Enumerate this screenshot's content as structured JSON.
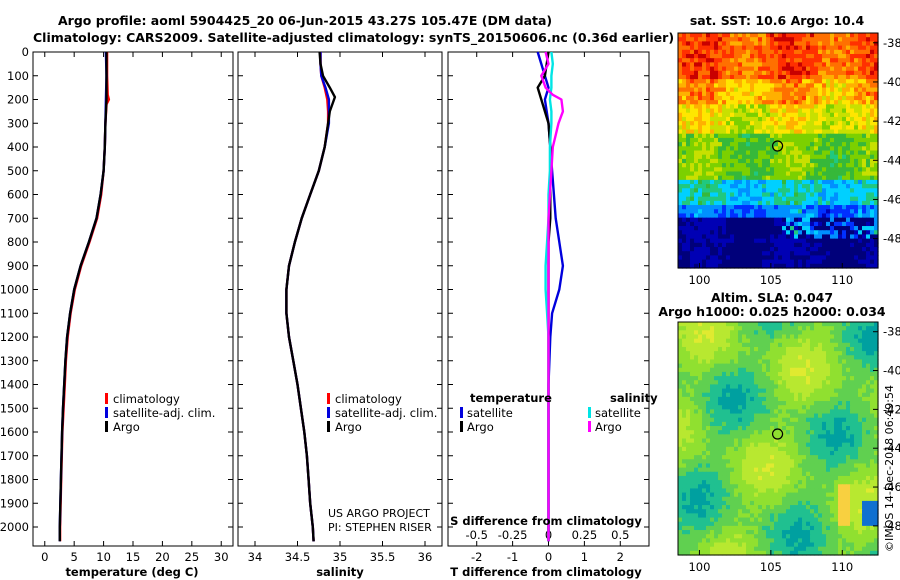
{
  "title": {
    "line1": "Argo profile: aoml 5904425_20 06-Jun-2015 43.27S 105.47E (DM data)",
    "line2": "Climatology: CARS2009. Satellite-adjusted climatology: synTS_20150606.nc (0.36d earlier)"
  },
  "colors": {
    "climatology": "#ff0000",
    "satellite": "#0000dd",
    "argo": "#000000",
    "sat_salinity": "#00e5e5",
    "argo_salinity": "#ff00ff"
  },
  "legend": {
    "climatology": "climatology",
    "satellite_adj": "satellite-adj. clim.",
    "argo": "Argo",
    "temperature": "temperature",
    "salinity": "salinity",
    "satellite": "satellite"
  },
  "credits": {
    "project": "US ARGO PROJECT",
    "pi": "PI: STEPHEN RISER"
  },
  "stamp": "©IMOS 14-Dec-2018 06:49:54",
  "chart_data": [
    {
      "type": "line",
      "title": "",
      "xlabel": "temperature (deg C)",
      "ylabel": "",
      "xlim": [
        -2,
        32
      ],
      "ylim": [
        2080,
        0
      ],
      "xticks": [
        0,
        5,
        10,
        15,
        20,
        25,
        30
      ],
      "yticks": [
        0,
        100,
        200,
        300,
        400,
        500,
        600,
        700,
        800,
        900,
        1000,
        1100,
        1200,
        1300,
        1400,
        1500,
        1600,
        1700,
        1800,
        1900,
        2000
      ],
      "series": [
        {
          "name": "climatology",
          "depth": [
            0,
            100,
            180,
            200,
            220,
            300,
            400,
            500,
            600,
            700,
            800,
            900,
            1000,
            1100,
            1200,
            1300,
            1400,
            1500,
            1600,
            1800,
            2000,
            2060
          ],
          "values": [
            10.6,
            10.6,
            10.7,
            10.9,
            10.5,
            10.3,
            10.2,
            10.0,
            9.6,
            8.9,
            7.6,
            6.2,
            5.1,
            4.4,
            3.9,
            3.6,
            3.4,
            3.2,
            3.0,
            2.8,
            2.6,
            2.6
          ]
        },
        {
          "name": "satellite-adj. clim.",
          "depth": [
            0,
            100,
            200,
            300,
            400,
            500,
            600,
            700,
            800,
            900,
            1000,
            1100,
            1200,
            1300,
            1400,
            1500,
            1600,
            1800,
            2000,
            2060
          ],
          "values": [
            10.4,
            10.5,
            10.4,
            10.3,
            10.2,
            10.0,
            9.5,
            8.8,
            7.5,
            6.1,
            5.0,
            4.3,
            3.8,
            3.5,
            3.3,
            3.1,
            2.95,
            2.75,
            2.55,
            2.55
          ]
        },
        {
          "name": "Argo",
          "depth": [
            0,
            100,
            200,
            300,
            400,
            500,
            600,
            700,
            800,
            900,
            1000,
            1100,
            1200,
            1300,
            1400,
            1500,
            1600,
            1800,
            2000,
            2060
          ],
          "values": [
            10.5,
            10.5,
            10.5,
            10.3,
            10.2,
            10.0,
            9.5,
            8.8,
            7.5,
            6.1,
            5.0,
            4.3,
            3.8,
            3.5,
            3.3,
            3.1,
            2.95,
            2.75,
            2.55,
            2.55
          ]
        }
      ],
      "legend_position": "center"
    },
    {
      "type": "line",
      "title": "",
      "xlabel": "salinity",
      "ylabel": "",
      "xlim": [
        33.8,
        36.2
      ],
      "ylim": [
        2080,
        0
      ],
      "xticks": [
        34,
        34.5,
        35,
        35.5,
        36
      ],
      "series": [
        {
          "name": "climatology",
          "depth": [
            0,
            50,
            100,
            150,
            200,
            250,
            300,
            400,
            500,
            600,
            700,
            800,
            900,
            1000,
            1100,
            1200,
            1300,
            1400,
            1500,
            1600,
            1700,
            1800,
            1900,
            2000,
            2060
          ],
          "values": [
            34.77,
            34.77,
            34.78,
            34.82,
            34.85,
            34.86,
            34.86,
            34.82,
            34.75,
            34.65,
            34.55,
            34.47,
            34.4,
            34.37,
            34.37,
            34.4,
            34.45,
            34.5,
            34.54,
            34.58,
            34.61,
            34.63,
            34.65,
            34.68,
            34.69
          ]
        },
        {
          "name": "satellite-adj. clim.",
          "depth": [
            0,
            50,
            100,
            150,
            200,
            250,
            300,
            400,
            500,
            600,
            700,
            800,
            900,
            1000,
            1100,
            1200,
            1300,
            1400,
            1500,
            1600,
            1700,
            1800,
            1900,
            2000,
            2060
          ],
          "values": [
            34.77,
            34.77,
            34.78,
            34.83,
            34.87,
            34.87,
            34.87,
            34.82,
            34.75,
            34.65,
            34.55,
            34.47,
            34.4,
            34.37,
            34.37,
            34.4,
            34.45,
            34.5,
            34.54,
            34.58,
            34.61,
            34.63,
            34.65,
            34.68,
            34.69
          ]
        },
        {
          "name": "Argo",
          "depth": [
            0,
            50,
            100,
            150,
            190,
            210,
            250,
            300,
            400,
            500,
            600,
            700,
            800,
            900,
            1000,
            1100,
            1200,
            1300,
            1400,
            1500,
            1600,
            1700,
            1800,
            1900,
            2000,
            2060
          ],
          "values": [
            34.76,
            34.77,
            34.8,
            34.88,
            34.94,
            34.92,
            34.88,
            34.86,
            34.82,
            34.75,
            34.65,
            34.55,
            34.47,
            34.4,
            34.37,
            34.37,
            34.4,
            34.45,
            34.5,
            34.54,
            34.58,
            34.61,
            34.63,
            34.65,
            34.68,
            34.69
          ]
        }
      ],
      "legend_position": "center"
    },
    {
      "type": "line",
      "title": "S difference from climatology",
      "xlabel": "T difference from climatology",
      "ylabel": "",
      "xlim": [
        -2.8,
        2.8
      ],
      "ylim": [
        2080,
        0
      ],
      "xticks": [
        -2,
        -1,
        0,
        1,
        2
      ],
      "s_axis": {
        "range": [
          -0.7,
          0.7
        ],
        "ticks": [
          -0.5,
          -0.25,
          0,
          0.25,
          0.5
        ],
        "tick_labels": [
          "-0.5",
          "-0.25",
          "0",
          "0.25",
          "0.5"
        ]
      },
      "series": [
        {
          "name": "temperature satellite",
          "axis": "T",
          "depth": [
            0,
            50,
            100,
            150,
            200,
            300,
            400,
            500,
            600,
            700,
            800,
            900,
            1000,
            1100,
            1200,
            1400,
            1600,
            1800,
            2000,
            2060
          ],
          "values": [
            -0.3,
            -0.2,
            -0.1,
            0.0,
            -0.1,
            0.0,
            0.05,
            0.1,
            0.15,
            0.2,
            0.3,
            0.4,
            0.3,
            0.1,
            0.05,
            0.0,
            0.0,
            0.0,
            0.0,
            0.0
          ]
        },
        {
          "name": "temperature Argo",
          "axis": "T",
          "depth": [
            0,
            50,
            100,
            150,
            200,
            300,
            400,
            500,
            600,
            700,
            800,
            900,
            1000,
            1100,
            1200,
            1400,
            1600,
            1800,
            2000,
            2060
          ],
          "values": [
            0.0,
            -0.05,
            -0.1,
            -0.3,
            -0.2,
            0.0,
            0.05,
            0.05,
            0.05,
            0.05,
            0.0,
            0.0,
            0.0,
            0.0,
            0.0,
            0.0,
            0.0,
            0.0,
            0.0,
            0.0
          ]
        },
        {
          "name": "salinity satellite",
          "axis": "S",
          "depth": [
            0,
            50,
            100,
            150,
            200,
            250,
            300,
            400,
            500,
            600,
            700,
            800,
            900,
            1000,
            1100,
            1200,
            1400,
            1600,
            1800,
            2000,
            2060
          ],
          "values": [
            0.02,
            0.03,
            0.02,
            0.02,
            0.01,
            0.02,
            0.02,
            0.01,
            0.01,
            0.0,
            0.0,
            -0.01,
            -0.02,
            -0.02,
            -0.01,
            0.0,
            0.0,
            0.0,
            0.0,
            0.0,
            0.0
          ]
        },
        {
          "name": "salinity Argo",
          "axis": "S",
          "depth": [
            0,
            50,
            100,
            150,
            180,
            200,
            250,
            300,
            350,
            400,
            500,
            600,
            700,
            800,
            900,
            1000,
            1100,
            1200,
            1300,
            1400,
            1600,
            1800,
            2000,
            2060
          ],
          "values": [
            -0.02,
            0.0,
            -0.05,
            -0.02,
            0.03,
            0.09,
            0.1,
            0.07,
            0.05,
            0.03,
            0.02,
            0.01,
            0.0,
            0.0,
            0.0,
            0.0,
            0.0,
            0.0,
            0.0,
            0.0,
            0.0,
            0.0,
            0.0,
            0.0
          ]
        }
      ],
      "legend_position": "bottom"
    },
    {
      "type": "heatmap",
      "title": "sat. SST: 10.6 Argo: 10.4",
      "xlim": [
        98.5,
        112.5
      ],
      "ylim": [
        -49.5,
        -37.5
      ],
      "xticks": [
        100,
        105,
        110
      ],
      "yticks": [
        -38,
        -40,
        -42,
        -44,
        -46,
        -48
      ],
      "marker": {
        "lon": 105.47,
        "lat": -43.27
      }
    },
    {
      "type": "heatmap",
      "title": "Altim. SLA: 0.047",
      "subtitle": "Argo h1000: 0.025 h2000: 0.034",
      "xlim": [
        98.5,
        112.5
      ],
      "ylim": [
        -49.5,
        -37.5
      ],
      "xticks": [
        100,
        105,
        110
      ],
      "yticks": [
        -38,
        -40,
        -42,
        -44,
        -46,
        -48
      ],
      "marker": {
        "lon": 105.47,
        "lat": -43.27
      }
    }
  ]
}
